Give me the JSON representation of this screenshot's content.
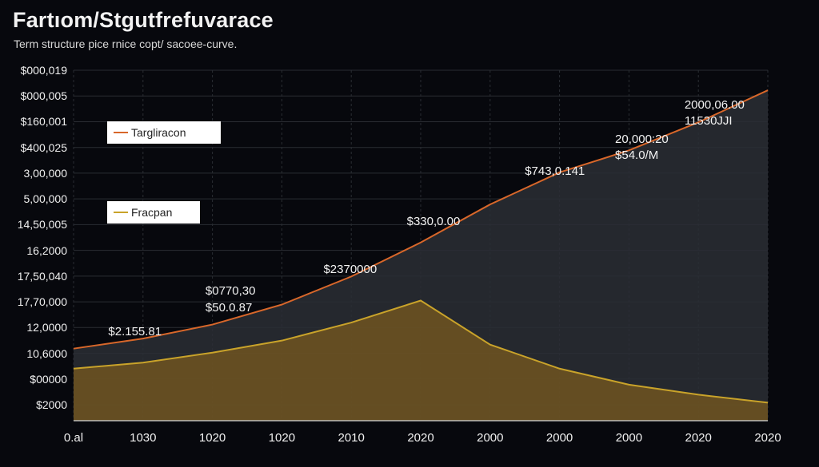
{
  "title": "Fartıom/Stgutfrefuvarace",
  "subtitle": "Term structure pice rnice copt/ sacoee-curve.",
  "legend": [
    {
      "label": "Targliracon",
      "color": "#d8672a"
    },
    {
      "label": "Fracpan",
      "color": "#c9a32a"
    }
  ],
  "colors": {
    "background": "#07080d",
    "line_orange": "#d8672a",
    "line_gold": "#c9a32a",
    "fill_gold": "#7a5a1f",
    "fill_gray": "#2a2e35"
  },
  "chart_data": {
    "type": "area",
    "title": "Fartıom/Stgutfrefuvarace",
    "subtitle": "Term structure pice rnice copt/ sacoee-curve.",
    "y_tick_labels": [
      "$000,019",
      "$000,005",
      "$160,001",
      "$400,025",
      "3,00,000",
      "5,00,000",
      "14,50,005",
      "16,2000",
      "17,50,040",
      "17,70,000",
      "12,0000",
      "10,6000",
      "$00000",
      "$2000"
    ],
    "x_tick_labels": [
      "0.al",
      "1030",
      "1020",
      "1020",
      "2010",
      "2020",
      "2000",
      "2000",
      "2000",
      "2020",
      "2020"
    ],
    "grid": true,
    "legend_position": "left",
    "series": [
      {
        "name": "Targliracon",
        "x": [
          0,
          1,
          2,
          3,
          4,
          5,
          6,
          7,
          8,
          9,
          10
        ],
        "y": [
          3.6,
          4.1,
          4.8,
          5.8,
          7.2,
          8.9,
          10.8,
          12.4,
          13.5,
          14.9,
          16.5
        ]
      },
      {
        "name": "Fracpan",
        "x": [
          0,
          1,
          2,
          3,
          4,
          5,
          6,
          7,
          8,
          9,
          10
        ],
        "y": [
          2.6,
          2.9,
          3.4,
          4.0,
          4.9,
          6.0,
          3.8,
          2.6,
          1.8,
          1.3,
          0.9
        ]
      }
    ],
    "annotations": [
      {
        "text": "$2.155.81",
        "x": 0.5,
        "y": 4.4
      },
      {
        "text": "$0770,30",
        "x": 1.9,
        "y": 6.4
      },
      {
        "text": "$50.0.87",
        "x": 1.9,
        "y": 5.6
      },
      {
        "text": "$2370000",
        "x": 3.6,
        "y": 7.5
      },
      {
        "text": "$330,0.00",
        "x": 4.8,
        "y": 9.9
      },
      {
        "text": "$743,0.141",
        "x": 6.5,
        "y": 12.4
      },
      {
        "text": "20,000:20",
        "x": 7.8,
        "y": 14.0
      },
      {
        "text": "$54.0/M",
        "x": 7.8,
        "y": 13.2
      },
      {
        "text": "2000,06.00",
        "x": 8.8,
        "y": 15.7
      },
      {
        "text": "11530JJI",
        "x": 8.8,
        "y": 14.9
      }
    ]
  }
}
